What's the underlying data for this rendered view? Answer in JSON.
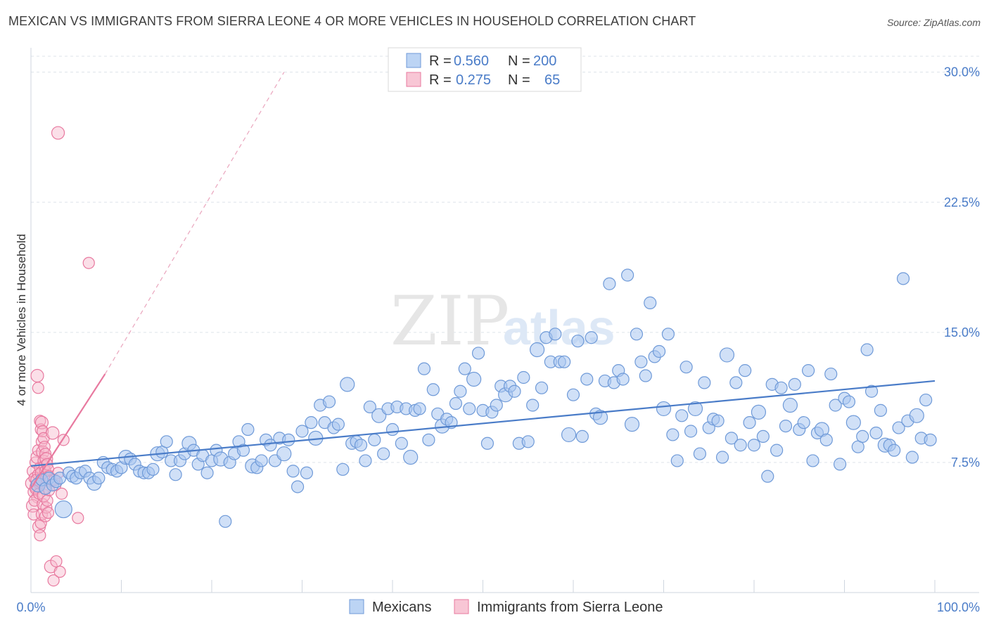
{
  "title": "MEXICAN VS IMMIGRANTS FROM SIERRA LEONE 4 OR MORE VEHICLES IN HOUSEHOLD CORRELATION CHART",
  "source": "Source: ZipAtlas.com",
  "watermark": {
    "zip": "ZIP",
    "atlas": "atlas"
  },
  "colors": {
    "blue": "#4a7cc8",
    "blue_fill": "#a9c7f0",
    "pink": "#e8799f",
    "pink_fill": "#f6b8cb",
    "grid": "#dde3ea"
  },
  "chart_data": {
    "type": "scatter",
    "title": "MEXICAN VS IMMIGRANTS FROM SIERRA LEONE 4 OR MORE VEHICLES IN HOUSEHOLD CORRELATION CHART",
    "ylabel": "4 or more Vehicles in Household",
    "xlabel": "",
    "xlim": [
      0,
      100
    ],
    "ylim": [
      0,
      31
    ],
    "x_tick_labels": [
      "0.0%",
      "100.0%"
    ],
    "y_ticks": [
      7.5,
      15.0,
      22.5,
      30.0
    ],
    "y_tick_labels": [
      "7.5%",
      "15.0%",
      "22.5%",
      "30.0%"
    ],
    "grid": true,
    "legend_position": "top-center",
    "legend": [
      {
        "name": "Mexicans",
        "r_label": "R =",
        "r_value": "0.560",
        "n_label": "N =",
        "n_value": "200"
      },
      {
        "name": "Immigrants from Sierra Leone",
        "r_label": "R =",
        "r_value": "0.275",
        "n_label": "N =",
        "n_value": "65"
      }
    ],
    "series": [
      {
        "name": "Mexicans",
        "color": "#4a7cc8",
        "trend": {
          "x0": 0,
          "y0": 7.3,
          "x1": 100,
          "y1": 12.2
        },
        "points": [
          [
            0.8,
            6.2
          ],
          [
            1.2,
            6.5
          ],
          [
            1.6,
            6.0
          ],
          [
            2.0,
            6.6
          ],
          [
            2.4,
            6.2
          ],
          [
            2.8,
            6.4
          ],
          [
            3.2,
            6.6
          ],
          [
            3.6,
            4.8
          ],
          [
            4.2,
            6.9
          ],
          [
            4.6,
            6.7
          ],
          [
            5.0,
            6.6
          ],
          [
            5.5,
            6.9
          ],
          [
            6.0,
            7.0
          ],
          [
            6.5,
            6.6
          ],
          [
            7.0,
            6.3
          ],
          [
            7.5,
            6.6
          ],
          [
            8.0,
            7.5
          ],
          [
            8.5,
            7.2
          ],
          [
            9.0,
            7.1
          ],
          [
            9.5,
            7.0
          ],
          [
            10.0,
            7.2
          ],
          [
            10.5,
            7.8
          ],
          [
            11.0,
            7.7
          ],
          [
            11.5,
            7.4
          ],
          [
            12.0,
            7.0
          ],
          [
            12.5,
            6.9
          ],
          [
            13.0,
            6.9
          ],
          [
            13.5,
            7.1
          ],
          [
            14.0,
            8.0
          ],
          [
            14.5,
            8.1
          ],
          [
            15.0,
            8.7
          ],
          [
            15.5,
            7.6
          ],
          [
            16.0,
            6.8
          ],
          [
            16.5,
            7.6
          ],
          [
            17.0,
            8.0
          ],
          [
            17.5,
            8.6
          ],
          [
            18.0,
            8.2
          ],
          [
            18.5,
            7.4
          ],
          [
            19.0,
            7.9
          ],
          [
            19.5,
            6.9
          ],
          [
            20.0,
            7.6
          ],
          [
            20.5,
            8.2
          ],
          [
            21.0,
            7.7
          ],
          [
            21.5,
            4.1
          ],
          [
            22.0,
            7.5
          ],
          [
            22.5,
            8.0
          ],
          [
            23.0,
            8.7
          ],
          [
            23.5,
            8.2
          ],
          [
            24.0,
            9.4
          ],
          [
            24.5,
            7.3
          ],
          [
            25.0,
            7.2
          ],
          [
            25.5,
            7.6
          ],
          [
            26.0,
            8.8
          ],
          [
            26.5,
            8.5
          ],
          [
            27.0,
            7.6
          ],
          [
            27.5,
            8.9
          ],
          [
            28.0,
            8.0
          ],
          [
            28.5,
            8.8
          ],
          [
            29.0,
            7.0
          ],
          [
            29.5,
            6.1
          ],
          [
            30.0,
            9.3
          ],
          [
            30.5,
            6.9
          ],
          [
            31.0,
            9.8
          ],
          [
            31.5,
            8.9
          ],
          [
            32.0,
            10.8
          ],
          [
            32.5,
            9.8
          ],
          [
            33.0,
            11.0
          ],
          [
            33.5,
            9.5
          ],
          [
            34.0,
            9.7
          ],
          [
            34.5,
            7.1
          ],
          [
            35.0,
            12.0
          ],
          [
            35.5,
            8.6
          ],
          [
            36.0,
            8.7
          ],
          [
            36.5,
            8.5
          ],
          [
            37.0,
            7.6
          ],
          [
            37.5,
            10.7
          ],
          [
            38.0,
            8.8
          ],
          [
            38.5,
            10.2
          ],
          [
            39.0,
            8.0
          ],
          [
            39.5,
            10.6
          ],
          [
            40.0,
            9.4
          ],
          [
            40.5,
            10.7
          ],
          [
            41.0,
            8.6
          ],
          [
            41.5,
            10.6
          ],
          [
            42.0,
            7.8
          ],
          [
            42.5,
            10.5
          ],
          [
            43.0,
            10.6
          ],
          [
            43.5,
            12.9
          ],
          [
            44.0,
            8.8
          ],
          [
            44.5,
            11.7
          ],
          [
            45.0,
            10.3
          ],
          [
            45.5,
            9.6
          ],
          [
            46.0,
            10.0
          ],
          [
            46.5,
            9.8
          ],
          [
            47.0,
            10.9
          ],
          [
            47.5,
            11.6
          ],
          [
            48.0,
            12.9
          ],
          [
            48.5,
            10.6
          ],
          [
            49.0,
            12.3
          ],
          [
            49.5,
            13.8
          ],
          [
            50.0,
            10.5
          ],
          [
            50.5,
            8.6
          ],
          [
            51.0,
            10.4
          ],
          [
            51.5,
            10.8
          ],
          [
            52.0,
            11.9
          ],
          [
            52.5,
            11.4
          ],
          [
            53.0,
            11.9
          ],
          [
            53.5,
            11.6
          ],
          [
            54.0,
            8.6
          ],
          [
            54.5,
            12.4
          ],
          [
            55.0,
            8.7
          ],
          [
            55.5,
            10.8
          ],
          [
            56.0,
            14.0
          ],
          [
            56.5,
            11.8
          ],
          [
            57.0,
            14.7
          ],
          [
            57.5,
            13.3
          ],
          [
            58.0,
            14.9
          ],
          [
            58.5,
            13.3
          ],
          [
            59.0,
            13.3
          ],
          [
            59.5,
            9.1
          ],
          [
            60.0,
            11.4
          ],
          [
            60.5,
            14.5
          ],
          [
            61.0,
            9.0
          ],
          [
            61.5,
            12.3
          ],
          [
            62.0,
            14.7
          ],
          [
            62.5,
            10.3
          ],
          [
            63.0,
            10.1
          ],
          [
            63.5,
            12.2
          ],
          [
            64.0,
            17.8
          ],
          [
            64.5,
            12.1
          ],
          [
            65.0,
            12.8
          ],
          [
            65.5,
            12.3
          ],
          [
            66.0,
            18.3
          ],
          [
            66.5,
            9.7
          ],
          [
            67.0,
            14.9
          ],
          [
            67.5,
            13.3
          ],
          [
            68.0,
            12.5
          ],
          [
            68.5,
            16.7
          ],
          [
            69.0,
            13.6
          ],
          [
            69.5,
            13.9
          ],
          [
            70.0,
            10.6
          ],
          [
            70.5,
            14.9
          ],
          [
            71.0,
            9.1
          ],
          [
            71.5,
            7.6
          ],
          [
            72.0,
            10.2
          ],
          [
            72.5,
            13.0
          ],
          [
            73.0,
            9.3
          ],
          [
            73.5,
            10.6
          ],
          [
            74.0,
            8.0
          ],
          [
            74.5,
            12.1
          ],
          [
            75.0,
            9.5
          ],
          [
            75.5,
            10.0
          ],
          [
            76.0,
            9.9
          ],
          [
            76.5,
            7.8
          ],
          [
            77.0,
            13.7
          ],
          [
            77.5,
            8.9
          ],
          [
            78.0,
            12.1
          ],
          [
            78.5,
            8.5
          ],
          [
            79.0,
            12.8
          ],
          [
            79.5,
            9.8
          ],
          [
            80.0,
            8.5
          ],
          [
            80.5,
            10.4
          ],
          [
            81.0,
            9.0
          ],
          [
            81.5,
            6.7
          ],
          [
            82.0,
            12.0
          ],
          [
            82.5,
            8.2
          ],
          [
            83.0,
            11.8
          ],
          [
            83.5,
            9.6
          ],
          [
            84.0,
            10.8
          ],
          [
            84.5,
            12.0
          ],
          [
            85.0,
            9.4
          ],
          [
            85.5,
            9.8
          ],
          [
            86.0,
            12.8
          ],
          [
            86.5,
            7.6
          ],
          [
            87.0,
            9.2
          ],
          [
            87.5,
            9.4
          ],
          [
            88.0,
            8.8
          ],
          [
            88.5,
            12.6
          ],
          [
            89.0,
            10.8
          ],
          [
            89.5,
            7.4
          ],
          [
            90.0,
            11.2
          ],
          [
            90.5,
            11.0
          ],
          [
            91.0,
            9.8
          ],
          [
            91.5,
            8.4
          ],
          [
            92.0,
            9.0
          ],
          [
            92.5,
            14.0
          ],
          [
            93.0,
            11.6
          ],
          [
            93.5,
            9.2
          ],
          [
            94.0,
            10.5
          ],
          [
            94.5,
            8.5
          ],
          [
            95.0,
            8.5
          ],
          [
            95.5,
            8.2
          ],
          [
            96.0,
            9.5
          ],
          [
            96.5,
            18.1
          ],
          [
            97.0,
            9.9
          ],
          [
            97.5,
            7.8
          ],
          [
            98.0,
            10.2
          ],
          [
            98.5,
            8.9
          ],
          [
            99.0,
            11.1
          ],
          [
            99.5,
            8.8
          ]
        ]
      },
      {
        "name": "Immigrants from Sierra Leone",
        "color": "#e8799f",
        "trend": {
          "x0": 0,
          "y0": 6.0,
          "x1": 8.2,
          "y1": 12.6,
          "dash_x1": 28,
          "dash_y1": 30.0
        },
        "points": [
          [
            0.1,
            6.3
          ],
          [
            0.2,
            7.0
          ],
          [
            0.3,
            5.8
          ],
          [
            0.4,
            6.6
          ],
          [
            0.5,
            7.5
          ],
          [
            0.6,
            6.1
          ],
          [
            0.7,
            5.5
          ],
          [
            0.8,
            6.8
          ],
          [
            0.9,
            6.3
          ],
          [
            1.0,
            7.2
          ],
          [
            0.2,
            5.0
          ],
          [
            0.3,
            4.5
          ],
          [
            0.4,
            5.3
          ],
          [
            0.5,
            6.0
          ],
          [
            0.6,
            6.5
          ],
          [
            0.7,
            7.8
          ],
          [
            0.8,
            8.2
          ],
          [
            0.9,
            5.7
          ],
          [
            1.0,
            6.4
          ],
          [
            1.1,
            6.9
          ],
          [
            0.7,
            12.5
          ],
          [
            0.8,
            11.8
          ],
          [
            1.0,
            9.9
          ],
          [
            1.1,
            9.4
          ],
          [
            1.2,
            8.7
          ],
          [
            1.3,
            8.1
          ],
          [
            1.4,
            7.6
          ],
          [
            1.5,
            7.3
          ],
          [
            1.6,
            7.0
          ],
          [
            1.7,
            6.6
          ],
          [
            1.2,
            9.8
          ],
          [
            1.3,
            9.3
          ],
          [
            1.4,
            8.9
          ],
          [
            1.5,
            8.4
          ],
          [
            1.6,
            8.0
          ],
          [
            1.7,
            7.7
          ],
          [
            1.8,
            7.4
          ],
          [
            1.9,
            7.1
          ],
          [
            2.0,
            6.7
          ],
          [
            2.1,
            6.4
          ],
          [
            0.9,
            3.8
          ],
          [
            1.0,
            3.3
          ],
          [
            1.1,
            4.0
          ],
          [
            1.2,
            4.5
          ],
          [
            1.3,
            5.1
          ],
          [
            1.4,
            5.6
          ],
          [
            1.5,
            6.0
          ],
          [
            1.6,
            4.4
          ],
          [
            1.7,
            4.9
          ],
          [
            1.8,
            5.3
          ],
          [
            2.2,
            1.5
          ],
          [
            2.5,
            0.7
          ],
          [
            2.8,
            1.8
          ],
          [
            3.2,
            1.2
          ],
          [
            3.6,
            8.8
          ],
          [
            2.4,
            9.2
          ],
          [
            2.7,
            6.2
          ],
          [
            3.0,
            6.9
          ],
          [
            3.4,
            5.7
          ],
          [
            5.2,
            4.3
          ],
          [
            3.0,
            26.5
          ],
          [
            6.4,
            19.0
          ],
          [
            2.0,
            5.9
          ],
          [
            2.6,
            6.5
          ],
          [
            1.9,
            4.6
          ]
        ]
      }
    ]
  }
}
